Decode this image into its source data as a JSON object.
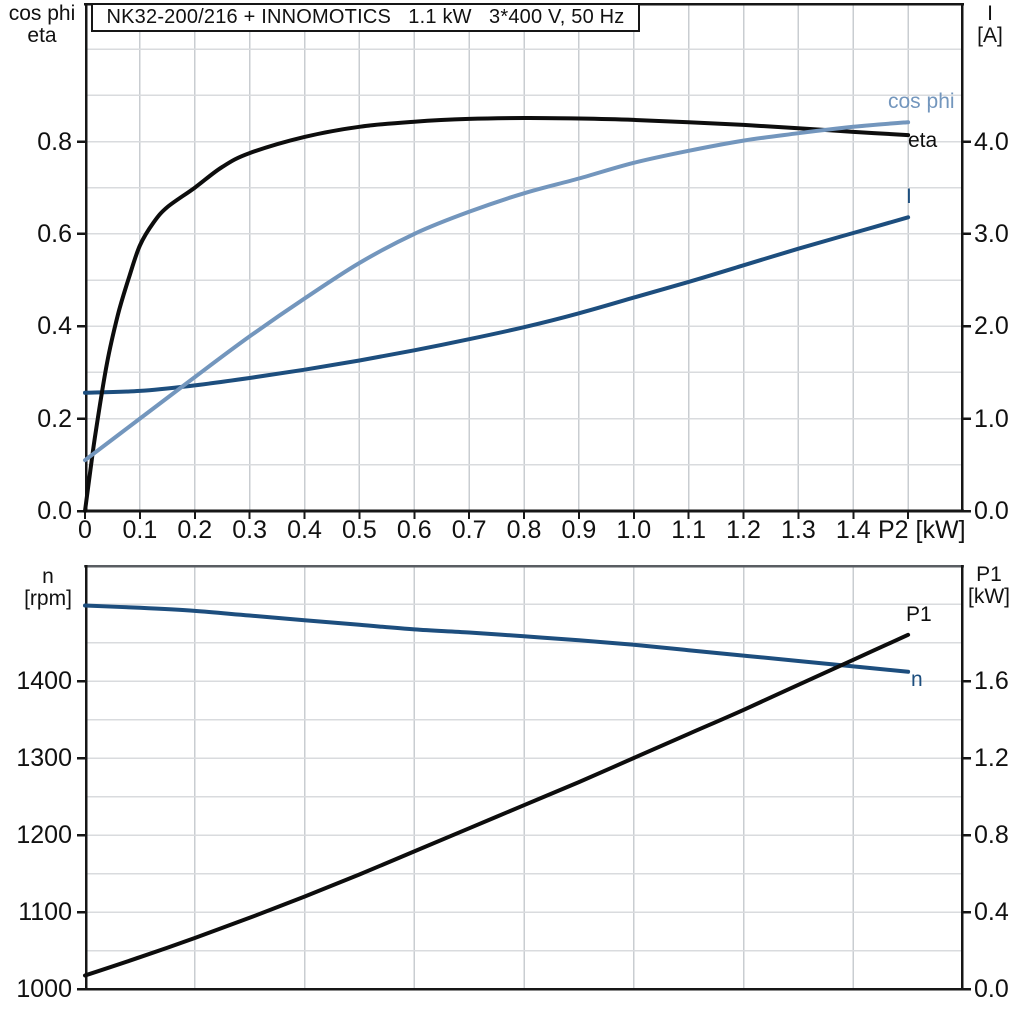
{
  "title": "NK32-200/216 + INNOMOTICS   1.1 kW   3*400 V, 50 Hz",
  "colors": {
    "black_curve": "#0d0d0d",
    "dark_blue": "#1d4e7e",
    "light_blue": "#7396bd",
    "axis": "#161616",
    "grid_horizontal": "#d9dbde",
    "grid_vertical": "#c9cdd1",
    "bottom_top_border": "#595d62"
  },
  "top_chart": {
    "left_axis_title_line1": "cos phi",
    "left_axis_title_line2": "eta",
    "right_axis_title_line1": "I",
    "right_axis_title_line2": "[A]",
    "x_unit_label": "P2 [kW]",
    "x_tick_labels": [
      "0",
      "0.1",
      "0.2",
      "0.3",
      "0.4",
      "0.5",
      "0.6",
      "0.7",
      "0.8",
      "0.9",
      "1.0",
      "1.1",
      "1.2",
      "1.3",
      "1.4"
    ],
    "y_left_tick_labels": [
      "0.0",
      "0.2",
      "0.4",
      "0.6",
      "0.8"
    ],
    "y_right_tick_labels": [
      "0.0",
      "1.0",
      "2.0",
      "3.0",
      "4.0"
    ],
    "curve_labels": {
      "cos_phi": "cos phi",
      "eta": "eta",
      "current": "I"
    }
  },
  "bottom_chart": {
    "left_axis_title_line1": "n",
    "left_axis_title_line2": "[rpm]",
    "right_axis_title_line1": "P1",
    "right_axis_title_line2": "[kW]",
    "y_left_tick_labels": [
      "1000",
      "1100",
      "1200",
      "1300",
      "1400"
    ],
    "y_right_tick_labels": [
      "0.0",
      "0.4",
      "0.8",
      "1.2",
      "1.6"
    ],
    "curve_labels": {
      "p1": "P1",
      "n": "n"
    }
  },
  "chart_data": [
    {
      "type": "line",
      "title": "NK32-200/216 + INNOMOTICS 1.1 kW 3*400 V, 50 Hz",
      "xlabel": "P2 [kW]",
      "x_range": [
        0,
        1.6
      ],
      "grid": {
        "x_step": 0.1,
        "y_step_left_units": 0.1,
        "grid_on": true
      },
      "left_axis": {
        "label": "cos phi / eta",
        "range": [
          0,
          1.1
        ],
        "ticks": [
          0.0,
          0.2,
          0.4,
          0.6,
          0.8
        ]
      },
      "right_axis": {
        "label": "I [A]",
        "range": [
          0,
          5.5
        ],
        "ticks": [
          0.0,
          1.0,
          2.0,
          3.0,
          4.0
        ]
      },
      "legend_position": "labels-at-line-ends",
      "series": [
        {
          "name": "eta",
          "axis": "left",
          "color_key": "black_curve",
          "x": [
            0,
            0.01,
            0.02,
            0.04,
            0.06,
            0.08,
            0.1,
            0.125,
            0.15,
            0.2,
            0.25,
            0.3,
            0.4,
            0.5,
            0.6,
            0.7,
            0.8,
            0.9,
            1.0,
            1.1,
            1.2,
            1.3,
            1.4,
            1.5
          ],
          "y": [
            0,
            0.09,
            0.175,
            0.32,
            0.425,
            0.505,
            0.575,
            0.625,
            0.658,
            0.7,
            0.745,
            0.775,
            0.81,
            0.832,
            0.843,
            0.849,
            0.851,
            0.85,
            0.847,
            0.842,
            0.836,
            0.829,
            0.821,
            0.814
          ]
        },
        {
          "name": "cos phi",
          "axis": "left",
          "color_key": "light_blue",
          "x": [
            0,
            0.1,
            0.2,
            0.3,
            0.4,
            0.5,
            0.6,
            0.7,
            0.8,
            0.9,
            1.0,
            1.1,
            1.2,
            1.3,
            1.4,
            1.5
          ],
          "y": [
            0.11,
            0.2,
            0.29,
            0.378,
            0.46,
            0.537,
            0.6,
            0.648,
            0.688,
            0.72,
            0.754,
            0.78,
            0.802,
            0.818,
            0.832,
            0.842
          ]
        },
        {
          "name": "I",
          "axis": "right",
          "color_key": "dark_blue",
          "x": [
            0,
            0.1,
            0.2,
            0.3,
            0.4,
            0.5,
            0.6,
            0.7,
            0.8,
            0.9,
            1.0,
            1.1,
            1.2,
            1.3,
            1.4,
            1.5
          ],
          "y": [
            1.28,
            1.3,
            1.36,
            1.44,
            1.53,
            1.63,
            1.74,
            1.86,
            1.99,
            2.14,
            2.31,
            2.48,
            2.66,
            2.84,
            3.01,
            3.18
          ]
        }
      ]
    },
    {
      "type": "line",
      "xlabel": "P2 [kW]",
      "x_range": [
        0,
        1.6
      ],
      "grid": {
        "x_step": 0.2,
        "y_step_right_units": 0.2,
        "grid_on": true
      },
      "left_axis": {
        "label": "n [rpm]",
        "range": [
          1000,
          1550
        ],
        "ticks": [
          1000,
          1100,
          1200,
          1300,
          1400
        ]
      },
      "right_axis": {
        "label": "P1 [kW]",
        "range": [
          0,
          2.2
        ],
        "ticks": [
          0.0,
          0.4,
          0.8,
          1.2,
          1.6
        ]
      },
      "legend_position": "labels-at-line-ends",
      "series": [
        {
          "name": "n",
          "axis": "left",
          "color_key": "dark_blue",
          "x": [
            0,
            0.1,
            0.2,
            0.3,
            0.4,
            0.5,
            0.6,
            0.7,
            0.8,
            0.9,
            1.0,
            1.1,
            1.2,
            1.3,
            1.4,
            1.5
          ],
          "y": [
            1498,
            1495,
            1491,
            1485,
            1479,
            1473,
            1467,
            1463,
            1458,
            1453,
            1447,
            1440,
            1433,
            1426,
            1419,
            1412
          ]
        },
        {
          "name": "P1",
          "axis": "right",
          "color_key": "black_curve",
          "x": [
            0,
            0.1,
            0.2,
            0.3,
            0.4,
            0.5,
            0.6,
            0.7,
            0.8,
            0.9,
            1.0,
            1.1,
            1.2,
            1.3,
            1.4,
            1.5
          ],
          "y": [
            0.07,
            0.165,
            0.265,
            0.37,
            0.48,
            0.595,
            0.715,
            0.835,
            0.955,
            1.075,
            1.2,
            1.325,
            1.45,
            1.58,
            1.71,
            1.84
          ]
        }
      ]
    }
  ]
}
